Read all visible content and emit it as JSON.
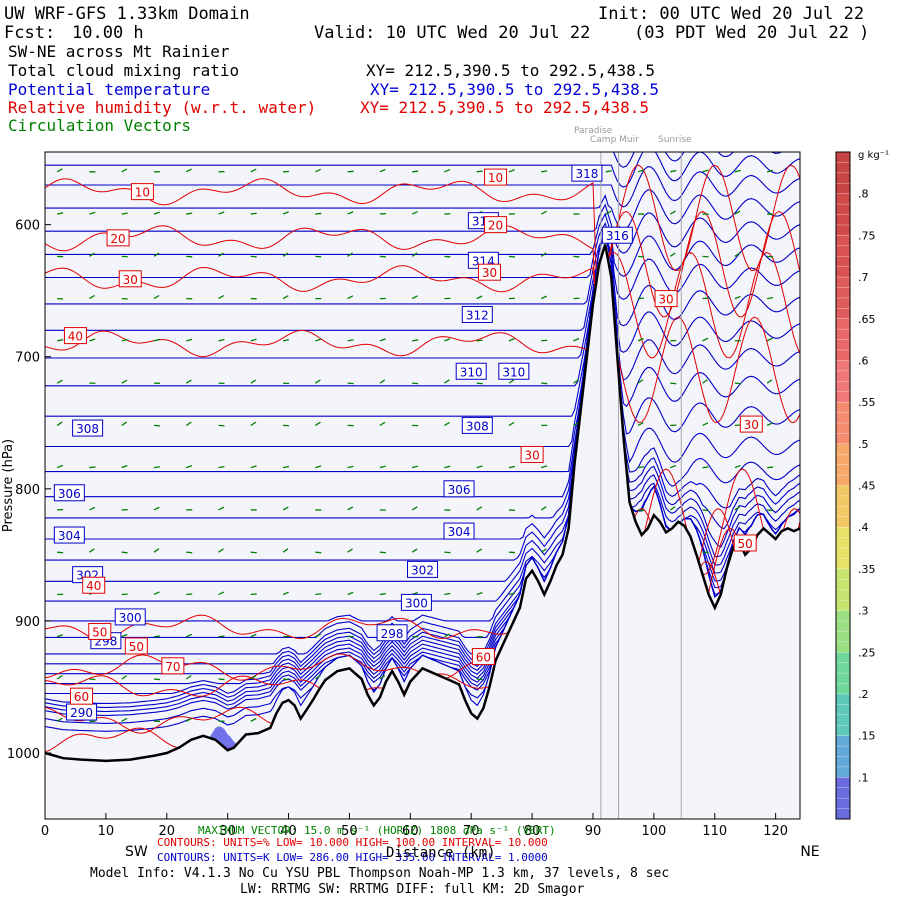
{
  "header": {
    "title_left": "UW WRF-GFS 1.33km Domain",
    "init": "Init: 00 UTC Wed 20 Jul 22",
    "fcst_label": "Fcst:",
    "fcst_value": "10.00 h",
    "valid": "Valid: 10 UTC Wed 20 Jul 22",
    "valid_local": "(03 PDT Wed 20 Jul 22  )",
    "cross_section": "SW-NE across Mt Rainier",
    "fields": [
      {
        "name": "Total cloud mixing ratio",
        "xy": "XY= 212.5,390.5 to 292.5,438.5",
        "color": "#000000"
      },
      {
        "name": "Potential temperature",
        "xy": "XY= 212.5,390.5 to 292.5,438.5",
        "color": "#0000d8"
      },
      {
        "name": "Relative humidity (w.r.t. water)",
        "xy": "XY= 212.5,390.5 to 292.5,438.5",
        "color": "#e00000"
      },
      {
        "name": "Circulation Vectors",
        "xy": "",
        "color": "#008000"
      }
    ]
  },
  "chart_data": {
    "type": "cross-section contour",
    "xlabel": "Distance (km)",
    "ylabel": "Pressure (hPa)",
    "xlim": [
      0,
      124
    ],
    "ylim": [
      1050,
      545
    ],
    "x_ticks": [
      0,
      10,
      20,
      30,
      40,
      50,
      60,
      70,
      80,
      90,
      100,
      110,
      120
    ],
    "y_ticks": [
      600,
      700,
      800,
      900,
      1000
    ],
    "y_tick_labels": [
      "600",
      "700",
      "800",
      "900",
      "1000"
    ],
    "end_labels": {
      "left": "SW",
      "right": "NE"
    },
    "locations": [
      {
        "name": "Paradise",
        "x": 91.3
      },
      {
        "name": "Camp Muir",
        "x": 94.2
      },
      {
        "name": "Sunrise",
        "x": 104.5
      }
    ],
    "terrain": [
      [
        0,
        1000
      ],
      [
        3,
        1004
      ],
      [
        6,
        1005
      ],
      [
        10,
        1006
      ],
      [
        14,
        1005
      ],
      [
        18,
        1002
      ],
      [
        20,
        1000
      ],
      [
        22,
        996
      ],
      [
        24,
        990
      ],
      [
        26,
        987
      ],
      [
        28,
        990
      ],
      [
        30,
        998
      ],
      [
        31,
        996
      ],
      [
        33,
        986
      ],
      [
        35,
        985
      ],
      [
        37,
        981
      ],
      [
        38,
        970
      ],
      [
        39,
        962
      ],
      [
        40,
        960
      ],
      [
        41,
        964
      ],
      [
        42,
        974
      ],
      [
        43,
        967
      ],
      [
        44,
        960
      ],
      [
        45,
        952
      ],
      [
        46,
        945
      ],
      [
        48,
        938
      ],
      [
        50,
        936
      ],
      [
        52,
        944
      ],
      [
        53,
        956
      ],
      [
        54,
        964
      ],
      [
        55,
        958
      ],
      [
        56,
        946
      ],
      [
        57,
        938
      ],
      [
        58,
        946
      ],
      [
        59,
        956
      ],
      [
        60,
        946
      ],
      [
        62,
        936
      ],
      [
        64,
        940
      ],
      [
        66,
        944
      ],
      [
        68,
        948
      ],
      [
        69,
        960
      ],
      [
        70,
        970
      ],
      [
        71,
        974
      ],
      [
        72,
        966
      ],
      [
        73,
        950
      ],
      [
        74,
        930
      ],
      [
        76,
        910
      ],
      [
        78,
        890
      ],
      [
        79,
        868
      ],
      [
        80,
        862
      ],
      [
        81,
        870
      ],
      [
        82,
        880
      ],
      [
        83,
        870
      ],
      [
        84,
        858
      ],
      [
        85,
        850
      ],
      [
        86,
        830
      ],
      [
        87,
        780
      ],
      [
        88,
        740
      ],
      [
        89,
        700
      ],
      [
        90,
        660
      ],
      [
        91,
        630
      ],
      [
        92,
        615
      ],
      [
        93,
        640
      ],
      [
        94,
        700
      ],
      [
        95,
        760
      ],
      [
        96,
        810
      ],
      [
        97,
        825
      ],
      [
        98,
        835
      ],
      [
        99,
        830
      ],
      [
        100,
        820
      ],
      [
        101,
        825
      ],
      [
        102,
        833
      ],
      [
        103,
        830
      ],
      [
        104,
        825
      ],
      [
        105,
        828
      ],
      [
        106,
        836
      ],
      [
        107,
        850
      ],
      [
        108,
        865
      ],
      [
        109,
        880
      ],
      [
        110,
        890
      ],
      [
        111,
        880
      ],
      [
        112,
        860
      ],
      [
        113,
        845
      ],
      [
        114,
        840
      ],
      [
        115,
        850
      ],
      [
        116,
        845
      ],
      [
        117,
        835
      ],
      [
        118,
        830
      ],
      [
        119,
        834
      ],
      [
        120,
        838
      ],
      [
        121,
        832
      ],
      [
        122,
        830
      ],
      [
        123,
        832
      ],
      [
        124,
        830
      ]
    ],
    "theta_contours_K": [
      {
        "value": 290,
        "label_x": 6,
        "label_p": 969
      },
      {
        "value": 298,
        "label_x": 10,
        "label_p": 915
      },
      {
        "value": 298,
        "label_x": 57,
        "label_p": 909
      },
      {
        "value": 300,
        "label_x": 14,
        "label_p": 897
      },
      {
        "value": 300,
        "label_x": 61,
        "label_p": 886
      },
      {
        "value": 302,
        "label_x": 7,
        "label_p": 865
      },
      {
        "value": 302,
        "label_x": 62,
        "label_p": 861
      },
      {
        "value": 304,
        "label_x": 4,
        "label_p": 835
      },
      {
        "value": 304,
        "label_x": 68,
        "label_p": 832
      },
      {
        "value": 306,
        "label_x": 4,
        "label_p": 803
      },
      {
        "value": 306,
        "label_x": 68,
        "label_p": 800
      },
      {
        "value": 308,
        "label_x": 7,
        "label_p": 754
      },
      {
        "value": 308,
        "label_x": 71,
        "label_p": 752
      },
      {
        "value": 310,
        "label_x": 70,
        "label_p": 711
      },
      {
        "value": 310,
        "label_x": 77,
        "label_p": 711
      },
      {
        "value": 312,
        "label_x": 71,
        "label_p": 668
      },
      {
        "value": 314,
        "label_x": 72,
        "label_p": 627
      },
      {
        "value": 316,
        "label_x": 72,
        "label_p": 597
      },
      {
        "value": 316,
        "label_x": 94,
        "label_p": 608
      },
      {
        "value": 318,
        "label_x": 89,
        "label_p": 561
      }
    ],
    "rh_contours_pct": [
      {
        "value": 10,
        "label_x": 16,
        "label_p": 575
      },
      {
        "value": 20,
        "label_x": 12,
        "label_p": 610
      },
      {
        "value": 30,
        "label_x": 14,
        "label_p": 641
      },
      {
        "value": 40,
        "label_x": 5,
        "label_p": 684
      },
      {
        "value": 30,
        "label_x": 80,
        "label_p": 774
      },
      {
        "value": 30,
        "label_x": 102,
        "label_p": 656
      },
      {
        "value": 30,
        "label_x": 116,
        "label_p": 751
      },
      {
        "value": 40,
        "label_x": 8,
        "label_p": 873
      },
      {
        "value": 50,
        "label_x": 9,
        "label_p": 908
      },
      {
        "value": 50,
        "label_x": 15,
        "label_p": 919
      },
      {
        "value": 50,
        "label_x": 115,
        "label_p": 841
      },
      {
        "value": 60,
        "label_x": 6,
        "label_p": 957
      },
      {
        "value": 60,
        "label_x": 72,
        "label_p": 927
      },
      {
        "value": 70,
        "label_x": 21,
        "label_p": 934
      },
      {
        "value": 10,
        "label_x": 74,
        "label_p": 564
      },
      {
        "value": 20,
        "label_x": 74,
        "label_p": 600
      },
      {
        "value": 30,
        "label_x": 73,
        "label_p": 636
      }
    ],
    "colorbar": {
      "units": "g kg⁻¹",
      "range": [
        0.05,
        0.85
      ],
      "labels": [
        ".1",
        ".15",
        ".2",
        ".25",
        ".3",
        ".35",
        ".4",
        ".45",
        ".5",
        ".55",
        ".6",
        ".65",
        ".7",
        ".75",
        ".8"
      ],
      "colors_low_to_high": [
        "#6b6be0",
        "#62a8d8",
        "#5ec9b8",
        "#6fd79a",
        "#9adf82",
        "#c6e46e",
        "#e6e266",
        "#f2c864",
        "#f5a868",
        "#f58c70",
        "#f07878",
        "#e86868",
        "#e05c5c",
        "#d85252",
        "#d04a4a",
        "#c84444"
      ]
    }
  },
  "footer": {
    "max_vector": "MAXIMUM VECTOR:  15.0 m s⁻¹  (HORIZ)        1808 dPa s⁻¹ (VERT)",
    "rh_contours": "CONTOURS:  UNITS=%  LOW=  10.000       HIGH=  100.00        INTERVAL=   10.000",
    "theta_contours": "CONTOURS:  UNITS=K  LOW=  286.00       HIGH=  335.00        INTERVAL=   1.0000",
    "distance_label": "Distance (km)",
    "model_info": "Model Info: V4.1.3    No Cu    YSU PBL   Thompson     Noah-MP    1.3 km,   37 levels,    8 sec",
    "model_info2": "LW: RRTMG  SW: RRTMG    DIFF: full    KM: 2D Smagor"
  },
  "colors": {
    "theta": "#0000c8",
    "rh": "#e00000",
    "vectors": "#008000",
    "terrain": "#000000",
    "background": "#f4f4fb",
    "cloud": "#5a5ae8"
  }
}
